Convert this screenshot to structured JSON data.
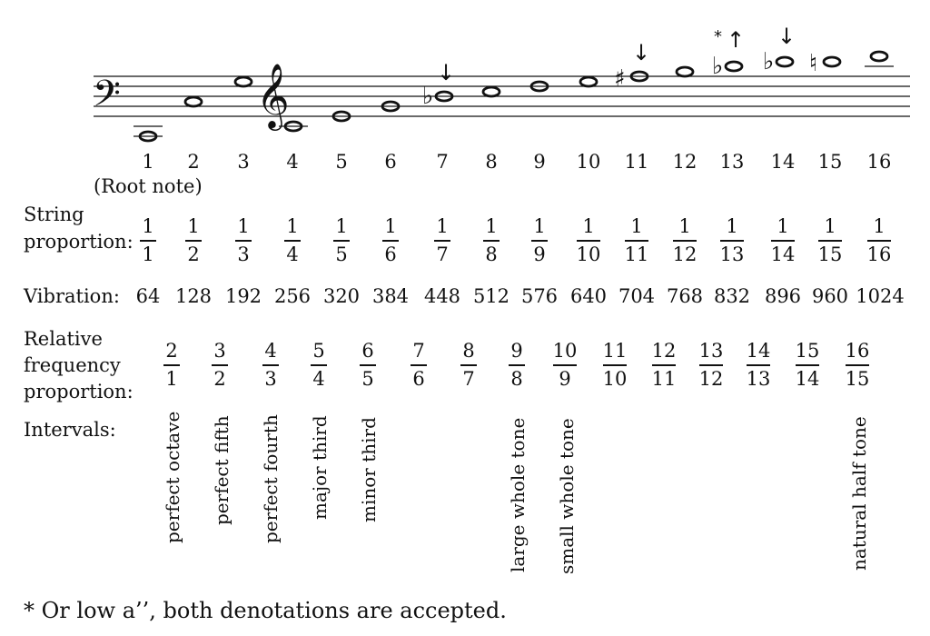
{
  "harmonics": [
    "1",
    "2",
    "3",
    "4",
    "5",
    "6",
    "7",
    "8",
    "9",
    "10",
    "11",
    "12",
    "13",
    "14",
    "15",
    "16"
  ],
  "root_note_label": "(Root note)",
  "string_proportion": {
    "label_line1": "String",
    "label_line2": "proportion:",
    "numerators": [
      "1",
      "1",
      "1",
      "1",
      "1",
      "1",
      "1",
      "1",
      "1",
      "1",
      "1",
      "1",
      "1",
      "1",
      "1",
      "1"
    ],
    "denominators": [
      "1",
      "2",
      "3",
      "4",
      "5",
      "6",
      "7",
      "8",
      "9",
      "10",
      "11",
      "12",
      "13",
      "14",
      "15",
      "16"
    ]
  },
  "vibration": {
    "label": "Vibration:",
    "values": [
      "64",
      "128",
      "192",
      "256",
      "320",
      "384",
      "448",
      "512",
      "576",
      "640",
      "704",
      "768",
      "832",
      "896",
      "960",
      "1024"
    ]
  },
  "relative_frequency": {
    "label_line1": "Relative",
    "label_line2": "frequency",
    "label_line3": "proportion:",
    "numerators": [
      "2",
      "3",
      "4",
      "5",
      "6",
      "7",
      "8",
      "9",
      "10",
      "11",
      "12",
      "13",
      "14",
      "15",
      "16"
    ],
    "denominators": [
      "1",
      "2",
      "3",
      "4",
      "5",
      "6",
      "7",
      "8",
      "9",
      "10",
      "11",
      "12",
      "13",
      "14",
      "15"
    ]
  },
  "intervals": {
    "label": "Intervals:",
    "perfect_octave": "perfect octave",
    "perfect_fifth": "perfect fifth",
    "perfect_fourth": "perfect fourth",
    "major_third": "major third",
    "minor_third": "minor third",
    "large_whole_tone": "large whole tone",
    "small_whole_tone": "small whole tone",
    "natural_half_tone": "natural half tone"
  },
  "footnote": "* Or low a’’, both denotations are accepted.",
  "symbols": {
    "bass_clef": "𝄢",
    "treble_clef": "𝄞",
    "flat": "♭",
    "sharp": "♯",
    "natural": "♮",
    "arrow_down": "↓",
    "arrow_up": "↑",
    "asterisk": "*"
  }
}
